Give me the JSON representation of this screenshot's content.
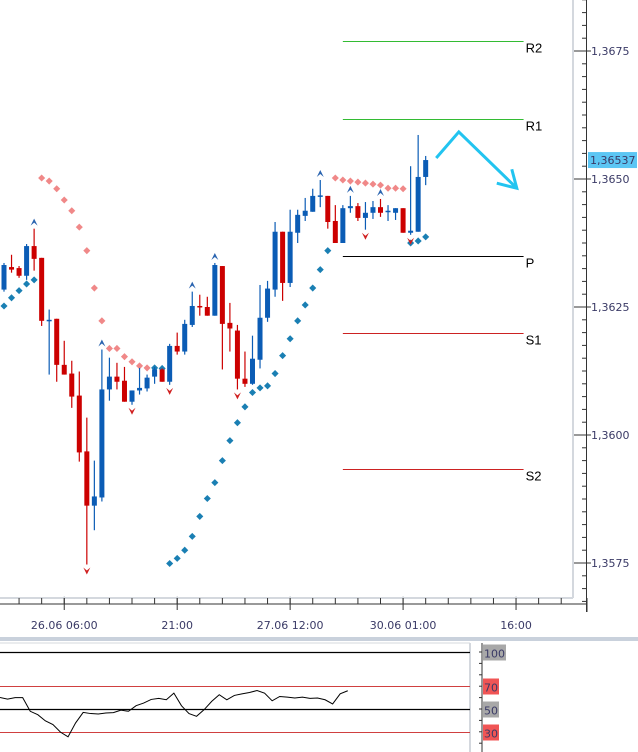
{
  "chart_data": {
    "type": "candlestick",
    "colors": {
      "up": "#0b5cb5",
      "down": "#cc0000",
      "sar_above": "#f08888",
      "sar_below": "#1a7fb3",
      "fractal_up": "#2a64b0",
      "fractal_down": "#d02020",
      "annotation": "#22c4f0",
      "pivot_resistance": "#33bb33",
      "pivot_pivot": "#000000",
      "pivot_support": "#cc2222",
      "last_price_bg": "#5cc6f4"
    },
    "y_axis": {
      "range": [
        1.35555,
        1.3685
      ],
      "ticks": [
        {
          "value": 1.3675,
          "label": "1,3675"
        },
        {
          "value": 1.365,
          "label": "1,3650"
        },
        {
          "value": 1.3625,
          "label": "1,3625"
        },
        {
          "value": 1.36,
          "label": "1,3600"
        },
        {
          "value": 1.3575,
          "label": "1,3575"
        }
      ]
    },
    "x_axis": {
      "unit": "hourly bars",
      "ticks": [
        {
          "index": 8,
          "label": "26.06 06:00"
        },
        {
          "index": 23,
          "label": "21:00"
        },
        {
          "index": 38,
          "label": "27.06 12:00"
        },
        {
          "index": 53,
          "label": "30.06 01:00"
        },
        {
          "index": 68,
          "label": "16:00"
        }
      ]
    },
    "last_price": {
      "value": 1.36537,
      "label": "1,36537"
    },
    "candles_ohlc": [
      [
        1.36284,
        1.36336,
        1.3628,
        1.36332
      ],
      [
        1.36328,
        1.36352,
        1.36317,
        1.36323
      ],
      [
        1.36326,
        1.3633,
        1.36307,
        1.36311
      ],
      [
        1.36311,
        1.36373,
        1.36303,
        1.36369
      ],
      [
        1.36369,
        1.36403,
        1.36321,
        1.36344
      ],
      [
        1.36346,
        1.36346,
        1.36213,
        1.36223
      ],
      [
        1.36223,
        1.36245,
        1.36118,
        1.36225
      ],
      [
        1.36227,
        1.36227,
        1.36104,
        1.36137
      ],
      [
        1.36137,
        1.36184,
        1.36118,
        1.36118
      ],
      [
        1.3612,
        1.36145,
        1.36053,
        1.36075
      ],
      [
        1.36077,
        1.36124,
        1.35948,
        1.35966
      ],
      [
        1.35968,
        1.36034,
        1.35747,
        1.35862
      ],
      [
        1.35862,
        1.3595,
        1.35814,
        1.3588
      ],
      [
        1.35878,
        1.36167,
        1.3587,
        1.36089
      ],
      [
        1.36089,
        1.36151,
        1.36067,
        1.36114
      ],
      [
        1.36114,
        1.36141,
        1.36089,
        1.36104
      ],
      [
        1.36106,
        1.36133,
        1.36065,
        1.36065
      ],
      [
        1.36065,
        1.36087,
        1.36059,
        1.36087
      ],
      [
        1.36087,
        1.36131,
        1.36079,
        1.36092
      ],
      [
        1.36091,
        1.36118,
        1.36085,
        1.36112
      ],
      [
        1.36114,
        1.36133,
        1.361,
        1.36128
      ],
      [
        1.36128,
        1.3613,
        1.36104,
        1.36104
      ],
      [
        1.36104,
        1.36178,
        1.36098,
        1.36174
      ],
      [
        1.36174,
        1.362,
        1.36157,
        1.36163
      ],
      [
        1.36163,
        1.36225,
        1.36157,
        1.36217
      ],
      [
        1.36215,
        1.3628,
        1.36211,
        1.36252
      ],
      [
        1.36252,
        1.36274,
        1.36233,
        1.3625
      ],
      [
        1.3625,
        1.3627,
        1.36233,
        1.36233
      ],
      [
        1.36233,
        1.36336,
        1.36233,
        1.36332
      ],
      [
        1.3633,
        1.3633,
        1.36128,
        1.36217
      ],
      [
        1.36219,
        1.36258,
        1.36163,
        1.36208
      ],
      [
        1.36204,
        1.36215,
        1.36089,
        1.3611
      ],
      [
        1.3611,
        1.36163,
        1.36094,
        1.361
      ],
      [
        1.361,
        1.36194,
        1.36098,
        1.36149
      ],
      [
        1.36147,
        1.36293,
        1.3613,
        1.36229
      ],
      [
        1.36229,
        1.36301,
        1.36221,
        1.36286
      ],
      [
        1.36284,
        1.36416,
        1.3627,
        1.36397
      ],
      [
        1.36397,
        1.36397,
        1.36262,
        1.36297
      ],
      [
        1.36297,
        1.3644,
        1.36289,
        1.36397
      ],
      [
        1.36395,
        1.3644,
        1.36375,
        1.3643
      ],
      [
        1.36428,
        1.36463,
        1.36418,
        1.36438
      ],
      [
        1.36436,
        1.36481,
        1.36436,
        1.36467
      ],
      [
        1.36467,
        1.36498,
        1.36445,
        1.36468
      ],
      [
        1.36467,
        1.36467,
        1.36403,
        1.36416
      ],
      [
        1.36418,
        1.36449,
        1.36375,
        1.36375
      ],
      [
        1.36375,
        1.36449,
        1.36375,
        1.36443
      ],
      [
        1.36443,
        1.36467,
        1.36434,
        1.36447
      ],
      [
        1.36447,
        1.36453,
        1.36418,
        1.36424
      ],
      [
        1.36424,
        1.36455,
        1.36401,
        1.36434
      ],
      [
        1.36434,
        1.36457,
        1.36422,
        1.36445
      ],
      [
        1.36445,
        1.36461,
        1.36426,
        1.36434
      ],
      [
        1.36436,
        1.36449,
        1.36418,
        1.36438
      ],
      [
        1.36434,
        1.36443,
        1.3642,
        1.36443
      ],
      [
        1.36443,
        1.36443,
        1.36395,
        1.36395
      ],
      [
        1.36395,
        1.36525,
        1.36391,
        1.36399
      ],
      [
        1.36397,
        1.36586,
        1.36397,
        1.36504
      ],
      [
        1.36504,
        1.36545,
        1.36488,
        1.36537
      ]
    ],
    "parabolic_sar": [
      1.36252,
      1.36268,
      1.36282,
      1.36295,
      1.36303,
      1.36502,
      1.36496,
      1.36481,
      1.36459,
      1.36438,
      1.36406,
      1.3636,
      1.36287,
      1.36223,
      1.36169,
      1.36169,
      1.36153,
      1.36143,
      1.36135,
      1.36131,
      1.36131,
      1.3613,
      1.35749,
      1.35759,
      1.35775,
      1.35802,
      1.35841,
      1.35876,
      1.35907,
      1.3595,
      1.35989,
      1.36024,
      1.36055,
      1.36083,
      1.36092,
      1.36096,
      1.3612,
      1.36155,
      1.36188,
      1.36223,
      1.36254,
      1.36287,
      1.36323,
      1.3636,
      1.36502,
      1.36498,
      1.36496,
      1.36494,
      1.36492,
      1.3649,
      1.36488,
      1.36482,
      1.36482,
      1.36481,
      1.36375,
      1.36379,
      1.36387
    ],
    "fractals_up": [
      4,
      13,
      25,
      28,
      42,
      46,
      50
    ],
    "fractals_down": [
      11,
      17,
      22,
      31,
      48,
      54
    ],
    "pivots": {
      "from_index": 45,
      "to_index": 69,
      "levels": [
        {
          "label": "R2",
          "value": 1.36769,
          "kind": "resistance"
        },
        {
          "label": "R1",
          "value": 1.36617,
          "kind": "resistance"
        },
        {
          "label": "P",
          "value": 1.3635,
          "kind": "pivot"
        },
        {
          "label": "S1",
          "value": 1.362,
          "kind": "support"
        },
        {
          "label": "S2",
          "value": 1.35933,
          "kind": "support"
        }
      ]
    },
    "annotation_arrow": [
      [
        57.4,
        1.36541
      ],
      [
        60.4,
        1.36592
      ],
      [
        68.1,
        1.36482
      ]
    ],
    "rsi": {
      "range": [
        0,
        100
      ],
      "levels": [
        {
          "value": 100,
          "label": "100",
          "style": "black"
        },
        {
          "value": 70,
          "label": "70",
          "style": "red"
        },
        {
          "value": 50,
          "label": "50",
          "style": "black"
        },
        {
          "value": 30,
          "label": "30",
          "style": "red"
        }
      ],
      "values": [
        60.1,
        58.7,
        60,
        60,
        48,
        45,
        39.6,
        36.4,
        29.7,
        25.6,
        37.8,
        47,
        46,
        45.6,
        46.5,
        46.8,
        49,
        48,
        52.9,
        55.2,
        58.4,
        59.3,
        58.1,
        63.9,
        52.9,
        46,
        43.6,
        49.4,
        56.7,
        62.5,
        58.1,
        61.9,
        63.3,
        64.5,
        66.2,
        63.9,
        57.2,
        61,
        60.4,
        59.6,
        60.4,
        59.3,
        59.6,
        58.1,
        54.4,
        63.3,
        66
      ]
    }
  }
}
